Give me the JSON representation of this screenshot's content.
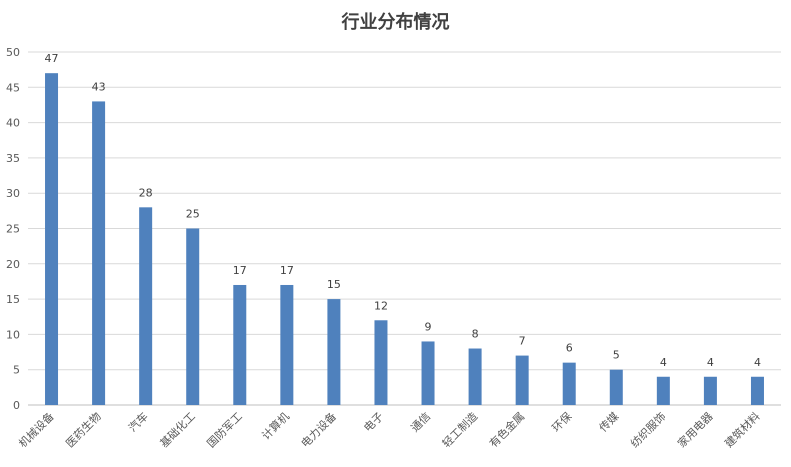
{
  "chart_data": {
    "type": "bar",
    "title": "行业分布情况",
    "categories": [
      "机械设备",
      "医药生物",
      "汽车",
      "基础化工",
      "国防军工",
      "计算机",
      "电力设备",
      "电子",
      "通信",
      "轻工制造",
      "有色金属",
      "环保",
      "传媒",
      "纺织服饰",
      "家用电器",
      "建筑材料"
    ],
    "values": [
      47,
      43,
      28,
      25,
      17,
      17,
      15,
      12,
      9,
      8,
      7,
      6,
      5,
      4,
      4,
      4
    ],
    "ylim": [
      0,
      50
    ],
    "yticks": [
      0,
      5,
      10,
      15,
      20,
      25,
      30,
      35,
      40,
      45,
      50
    ],
    "grid": true,
    "legend": "none",
    "bar_color": "#4f81bd"
  }
}
